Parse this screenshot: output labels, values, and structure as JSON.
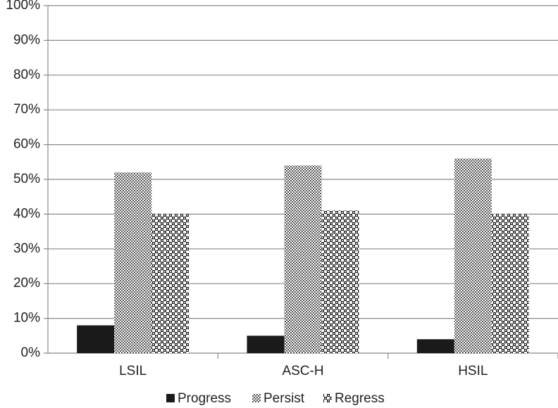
{
  "chart_data": {
    "type": "bar",
    "categories": [
      "LSIL",
      "ASC-H",
      "HSIL"
    ],
    "series": [
      {
        "name": "Progress",
        "color": "#1a1a1a",
        "values": [
          8,
          5,
          4
        ]
      },
      {
        "name": "Persist",
        "color": "#555555",
        "values": [
          52,
          54,
          56
        ]
      },
      {
        "name": "Regress",
        "color": "#111111",
        "values": [
          40,
          41,
          40
        ]
      }
    ],
    "ylim": [
      0,
      100
    ],
    "yticks": [
      {
        "value": 0,
        "label": "0%"
      },
      {
        "value": 10,
        "label": "10%"
      },
      {
        "value": 20,
        "label": "20%"
      },
      {
        "value": 30,
        "label": "30%"
      },
      {
        "value": 40,
        "label": "40%"
      },
      {
        "value": 50,
        "label": "50%"
      },
      {
        "value": 60,
        "label": "60%"
      },
      {
        "value": 70,
        "label": "70%"
      },
      {
        "value": 80,
        "label": "80%"
      },
      {
        "value": 90,
        "label": "90%"
      },
      {
        "value": 100,
        "label": "100%"
      }
    ],
    "grid": true,
    "legend": "bottom"
  }
}
